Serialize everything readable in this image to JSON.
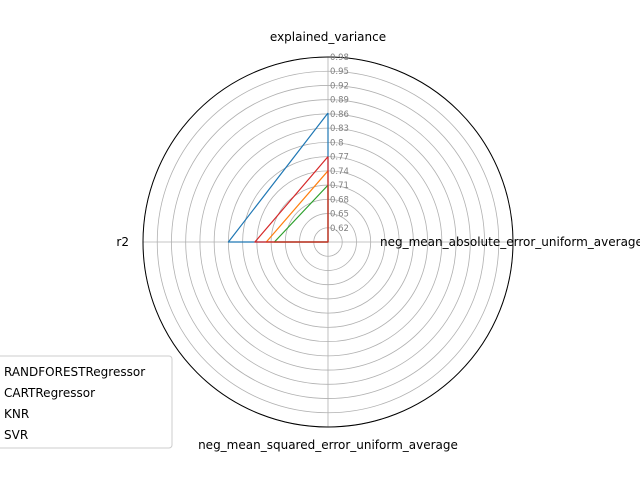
{
  "chart_data": {
    "type": "radar",
    "axes": [
      "explained_variance",
      "neg_mean_absolute_error_uniform_average",
      "neg_mean_squared_error_uniform_average",
      "r2"
    ],
    "radial_ticks": [
      "0.62",
      "0.65",
      "0.68",
      "0.71",
      "0.74",
      "0.77",
      "0.8",
      "0.83",
      "0.86",
      "0.89",
      "0.92",
      "0.95",
      "0.98"
    ],
    "rlim": [
      0.59,
      0.98
    ],
    "grid": true,
    "legend_placement": "lower-left",
    "series": [
      {
        "name": "RANDFORESTRegressor",
        "color": "#1f77b4",
        "values": [
          0.862,
          0.59,
          0.59,
          0.8
        ]
      },
      {
        "name": "CARTRegressor",
        "color": "#ff7f0e",
        "values": [
          0.74,
          0.59,
          0.59,
          0.72
        ]
      },
      {
        "name": "KNR",
        "color": "#2ca02c",
        "values": [
          0.71,
          0.59,
          0.59,
          0.703
        ]
      },
      {
        "name": "SVR",
        "color": "#d62728",
        "values": [
          0.77,
          0.59,
          0.59,
          0.744
        ]
      }
    ]
  }
}
